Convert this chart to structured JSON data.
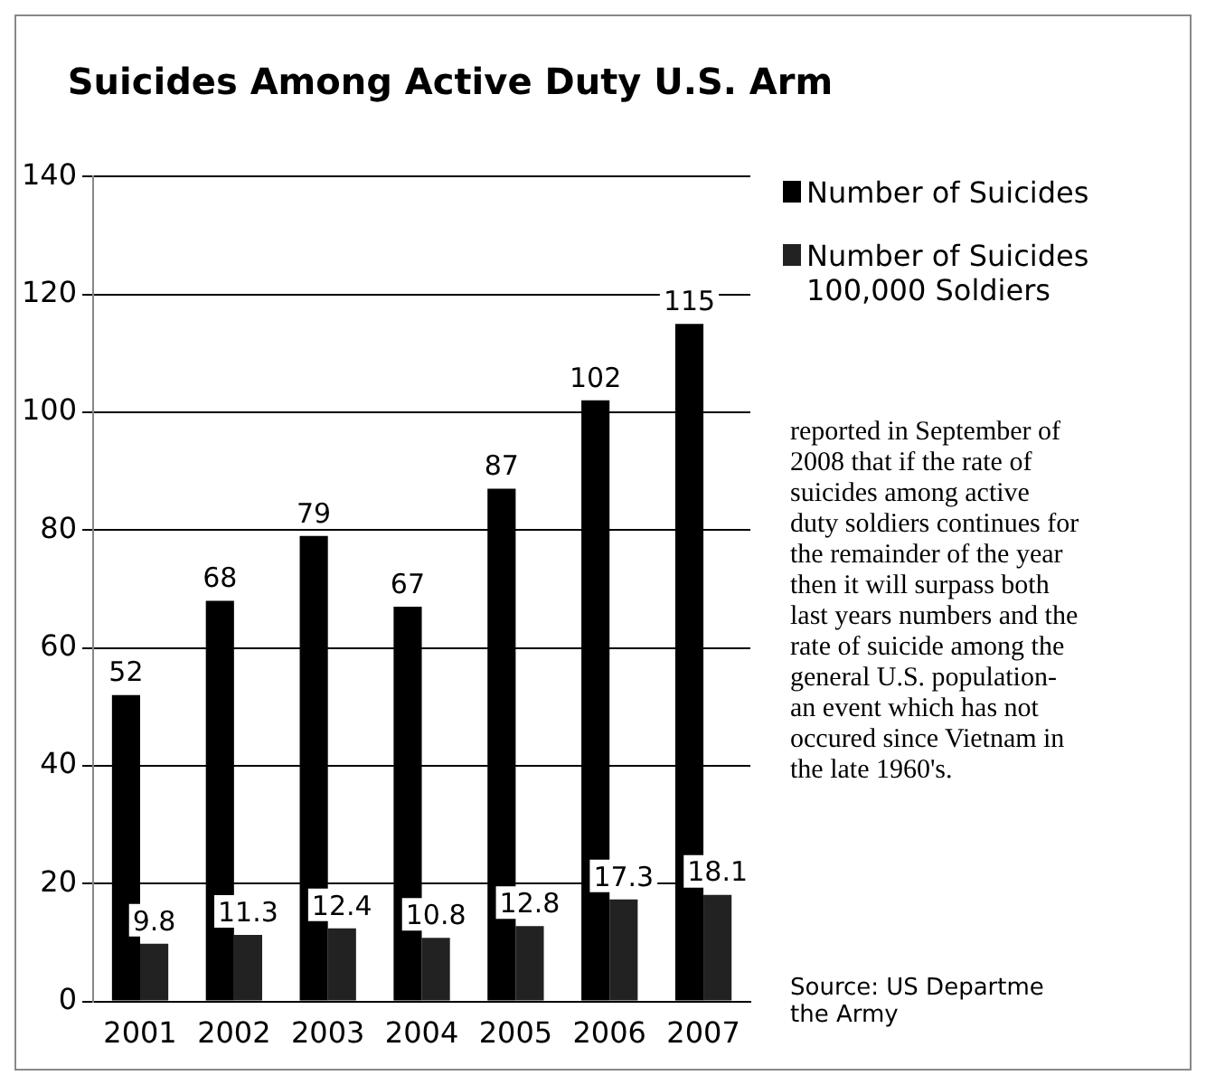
{
  "chart_data": {
    "type": "bar",
    "title": "Suicides Among Active Duty U.S. Arm",
    "categories": [
      "2001",
      "2002",
      "2003",
      "2004",
      "2005",
      "2006",
      "2007"
    ],
    "series": [
      {
        "name": "Number of Suicides",
        "color": "#000000",
        "values": [
          52,
          68,
          79,
          67,
          87,
          102,
          115
        ]
      },
      {
        "name": "Number of Suicides 100,000 Soldiers",
        "color": "#222222",
        "values": [
          9.8,
          11.3,
          12.4,
          10.8,
          12.8,
          17.3,
          18.1
        ]
      }
    ],
    "ylim": [
      0,
      140
    ],
    "yticks": [
      0,
      20,
      40,
      60,
      80,
      100,
      120,
      140
    ],
    "grid": "y",
    "legend": "right",
    "data_labels": true,
    "annotations": [
      "reported in September of 2008 that if the rate of suicides among active duty soldiers continues for the remainder of the year then it will surpass both last years numbers and the rate of suicide among the general U.S. population- an event which has not occured since Vietnam in the late 1960's.",
      "Source: US Departme the Army"
    ]
  }
}
